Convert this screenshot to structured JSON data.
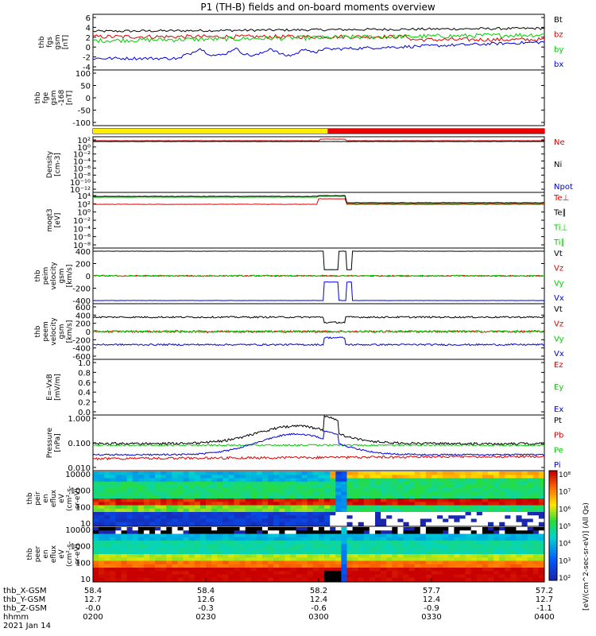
{
  "title": "P1 (TH-B) fields and on-board moments overview",
  "colors": {
    "black": "#000000",
    "red": "#dd0000",
    "green": "#00cc00",
    "blue": "#0000dd",
    "yellow": "#ffee00",
    "barred": "#ee0000"
  },
  "panels": [
    {
      "id": "fgs",
      "ylabel": [
        "thb",
        "fgs",
        "gsm",
        "[nT]"
      ],
      "ticks": [
        "6",
        "4",
        "2",
        "0",
        "-2",
        "-4"
      ],
      "legend": [
        {
          "t": "Bt",
          "c": "black"
        },
        {
          "t": "bz",
          "c": "red"
        },
        {
          "t": "by",
          "c": "green"
        },
        {
          "t": "bx",
          "c": "blue"
        }
      ]
    },
    {
      "id": "fge",
      "ylabel": [
        "thb",
        "fge",
        "gsm",
        "-168",
        "[nT]"
      ],
      "ticks": [
        "100",
        "50",
        "0",
        "-50",
        "-100"
      ],
      "legend": []
    },
    {
      "id": "bar",
      "ylabel": [],
      "ticks": [],
      "legend": []
    },
    {
      "id": "density",
      "ylabel": [
        "Density",
        "[cm-3]"
      ],
      "ticks": [
        "10²",
        "10⁰",
        "10⁻²",
        "10⁻⁴",
        "10⁻⁶",
        "10⁻⁸",
        "10⁻¹⁰",
        "10⁻¹²"
      ],
      "legend": [
        {
          "t": "Ne",
          "c": "red"
        },
        {
          "t": "Ni",
          "c": "black"
        },
        {
          "t": "Npot",
          "c": "blue"
        }
      ]
    },
    {
      "id": "temp",
      "ylabel": [
        "moqt3",
        "[eV]"
      ],
      "ticks": [
        "10⁴",
        "10²",
        "10⁰",
        "10⁻²",
        "10⁻⁴",
        "10⁻⁶",
        "10⁻⁸"
      ],
      "legend": [
        {
          "t": "Te⊥",
          "c": "red"
        },
        {
          "t": "Te∥",
          "c": "black"
        },
        {
          "t": "Ti⊥",
          "c": "green"
        },
        {
          "t": "Ti∥",
          "c": "green"
        }
      ]
    },
    {
      "id": "peim",
      "ylabel": [
        "thb",
        "peim",
        "velocity",
        "gsm",
        "[km/s]"
      ],
      "ticks": [
        "400",
        "200",
        "0",
        "-200",
        "-400"
      ],
      "legend": [
        {
          "t": "Vt",
          "c": "black"
        },
        {
          "t": "Vz",
          "c": "red"
        },
        {
          "t": "Vy",
          "c": "green"
        },
        {
          "t": "Vx",
          "c": "blue"
        }
      ]
    },
    {
      "id": "peem",
      "ylabel": [
        "thb",
        "peem",
        "velocity",
        "gsm",
        "[km/s]"
      ],
      "ticks": [
        "600",
        "400",
        "200",
        "0",
        "-200",
        "-400",
        "-600"
      ],
      "legend": [
        {
          "t": "Vt",
          "c": "black"
        },
        {
          "t": "Vz",
          "c": "red"
        },
        {
          "t": "Vy",
          "c": "green"
        },
        {
          "t": "Vx",
          "c": "blue"
        }
      ]
    },
    {
      "id": "efield",
      "ylabel": [
        "E=-VxB",
        "[mV/m]"
      ],
      "ticks": [
        "1.0",
        "0.8",
        "0.6",
        "0.4",
        "0.2",
        "0.0"
      ],
      "legend": [
        {
          "t": "Ez",
          "c": "red"
        },
        {
          "t": "Ey",
          "c": "green"
        },
        {
          "t": "Ex",
          "c": "blue"
        }
      ]
    },
    {
      "id": "pressure",
      "ylabel": [
        "Pressure",
        "[nPa]"
      ],
      "ticks": [
        "1.000",
        "0.100",
        "0.010"
      ],
      "legend": [
        {
          "t": "Pt",
          "c": "black"
        },
        {
          "t": "Pb",
          "c": "red"
        },
        {
          "t": "Pe",
          "c": "green"
        },
        {
          "t": "Pi",
          "c": "blue"
        }
      ]
    },
    {
      "id": "peir",
      "ylabel": [
        "thb",
        "peir",
        "en",
        "eflux",
        "eV",
        "(cm²-s-",
        "sr-eV)"
      ],
      "ticks": [
        "10000",
        "1000",
        "100",
        "10"
      ],
      "legend": []
    },
    {
      "id": "peer",
      "ylabel": [
        "thb",
        "peer",
        "en",
        "eflux",
        "eV",
        "(cm²-s-",
        "sr-eV)"
      ],
      "ticks": [
        "10000",
        "1000",
        "100",
        "10"
      ],
      "legend": []
    }
  ],
  "colorbar": {
    "ticks": [
      "10⁸",
      "10⁷",
      "10⁶",
      "10⁵",
      "10⁴",
      "10³",
      "10²"
    ],
    "label": "[eV/(cm^2-sec-sr-eV)] (All Qs)"
  },
  "xaxis": {
    "rows": [
      {
        "label": "thb_X-GSM",
        "values": [
          "58.4",
          "58.4",
          "58.2",
          "57.7",
          "57.2"
        ]
      },
      {
        "label": "thb_Y-GSM",
        "values": [
          "12.7",
          "12.6",
          "12.4",
          "12.4",
          "12.7"
        ]
      },
      {
        "label": "thb_Z-GSM",
        "values": [
          "-0.0",
          "-0.3",
          "-0.6",
          "-0.9",
          "-1.1"
        ]
      },
      {
        "label": "hhmm",
        "values": [
          "0200",
          "0230",
          "0300",
          "0330",
          "0400"
        ]
      }
    ],
    "date": "2021 Jan 14"
  }
}
